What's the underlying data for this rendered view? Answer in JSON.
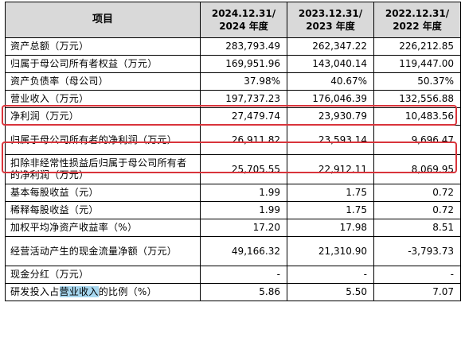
{
  "header": {
    "item": "项目",
    "col1_line1": "2024.12.31/",
    "col1_line2": "2024 年度",
    "col2_line1": "2023.12.31/",
    "col2_line2": "2023 年度",
    "col3_line1": "2022.12.31/",
    "col3_line2": "2022 年度"
  },
  "rows": [
    {
      "label": "资产总额（万元）",
      "v1": "283,793.49",
      "v2": "262,347.22",
      "v3": "226,212.85"
    },
    {
      "label": "归属于母公司所有者权益（万元）",
      "v1": "169,951.96",
      "v2": "143,040.14",
      "v3": "119,447.00"
    },
    {
      "label": "资产负债率（母公司）",
      "v1": "37.98%",
      "v2": "40.67%",
      "v3": "50.37%"
    },
    {
      "label": "营业收入（万元）",
      "v1": "197,737.23",
      "v2": "176,046.39",
      "v3": "132,556.88"
    },
    {
      "label": "净利润（万元）",
      "v1": "27,479.74",
      "v2": "23,930.79",
      "v3": "10,483.56"
    },
    {
      "label": "归属于母公司所有者的净利润（万元）",
      "v1": "26,911.82",
      "v2": "23,593.14",
      "v3": "9,696.47"
    },
    {
      "label": "扣除非经常性损益后归属于母公司所有者的净利润（万元）",
      "v1": "25,705.55",
      "v2": "22,912.11",
      "v3": "8,069.95"
    },
    {
      "label": "基本每股收益（元）",
      "v1": "1.99",
      "v2": "1.75",
      "v3": "0.72"
    },
    {
      "label": "稀释每股收益（元）",
      "v1": "1.99",
      "v2": "1.75",
      "v3": "0.72"
    },
    {
      "label": "加权平均净资产收益率（%）",
      "v1": "17.20",
      "v2": "17.98",
      "v3": "8.51"
    },
    {
      "label": "经营活动产生的现金流量净额（万元）",
      "v1": "49,166.32",
      "v2": "21,310.90",
      "v3": "-3,793.73"
    },
    {
      "label": "现金分红（万元）",
      "v1": "-",
      "v2": "-",
      "v3": "-"
    }
  ],
  "last_row": {
    "label_pre": "研发投入占",
    "label_highlight": "营业收入",
    "label_post": "的比例（%）",
    "v1": "5.86",
    "v2": "5.50",
    "v3": "7.07"
  },
  "colors": {
    "highlight_box": "#d9343b",
    "text_highlight": "#a8d8f0",
    "header_bg": "#d9d9d9"
  }
}
